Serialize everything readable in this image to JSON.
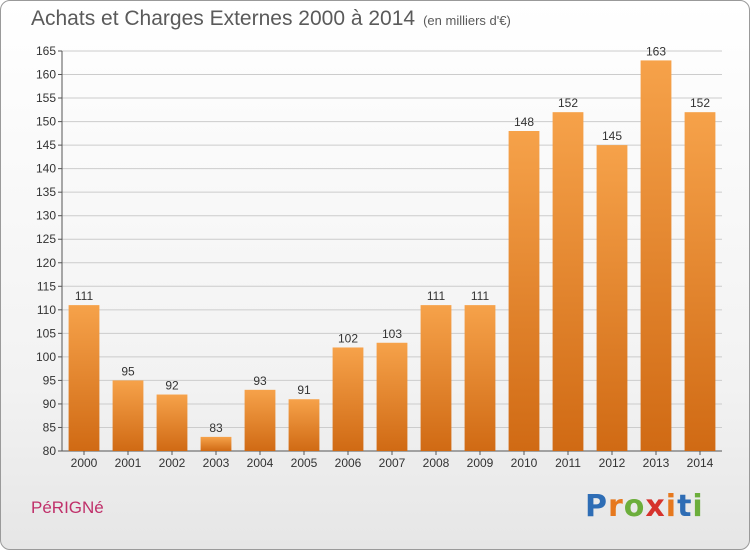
{
  "header": {
    "title": "Achats et Charges Externes 2000 à 2014",
    "subtitle": "(en milliers d'€)"
  },
  "footer": {
    "commune": "PéRIGNé",
    "logo_letters": [
      "P",
      "r",
      "o",
      "x",
      "i",
      "t",
      "i"
    ],
    "logo_colors": [
      "#2e6db5",
      "#e6781e",
      "#6cae3c",
      "#d6332d",
      "#e6781e",
      "#2e6db5",
      "#6cae3c"
    ]
  },
  "colors": {
    "bar_top": "#f6a24a",
    "bar_bottom": "#d06a14",
    "grid": "#cccccc",
    "axis_text": "#333333"
  },
  "chart_data": {
    "type": "bar",
    "categories": [
      "2000",
      "2001",
      "2002",
      "2003",
      "2004",
      "2005",
      "2006",
      "2007",
      "2008",
      "2009",
      "2010",
      "2011",
      "2012",
      "2013",
      "2014"
    ],
    "values": [
      111,
      95,
      92,
      83,
      93,
      91,
      102,
      103,
      111,
      111,
      148,
      152,
      145,
      163,
      152
    ],
    "data_labels": [
      "111",
      "95",
      "92",
      "83",
      "93",
      "91",
      "102",
      "103",
      "111",
      "111",
      "148",
      "152",
      "145",
      "163",
      "152"
    ],
    "yticks": [
      80,
      85,
      90,
      95,
      100,
      105,
      110,
      115,
      120,
      125,
      130,
      135,
      140,
      145,
      150,
      155,
      160,
      165
    ],
    "ylim": [
      80,
      165
    ],
    "grid": true,
    "legend": "none"
  }
}
